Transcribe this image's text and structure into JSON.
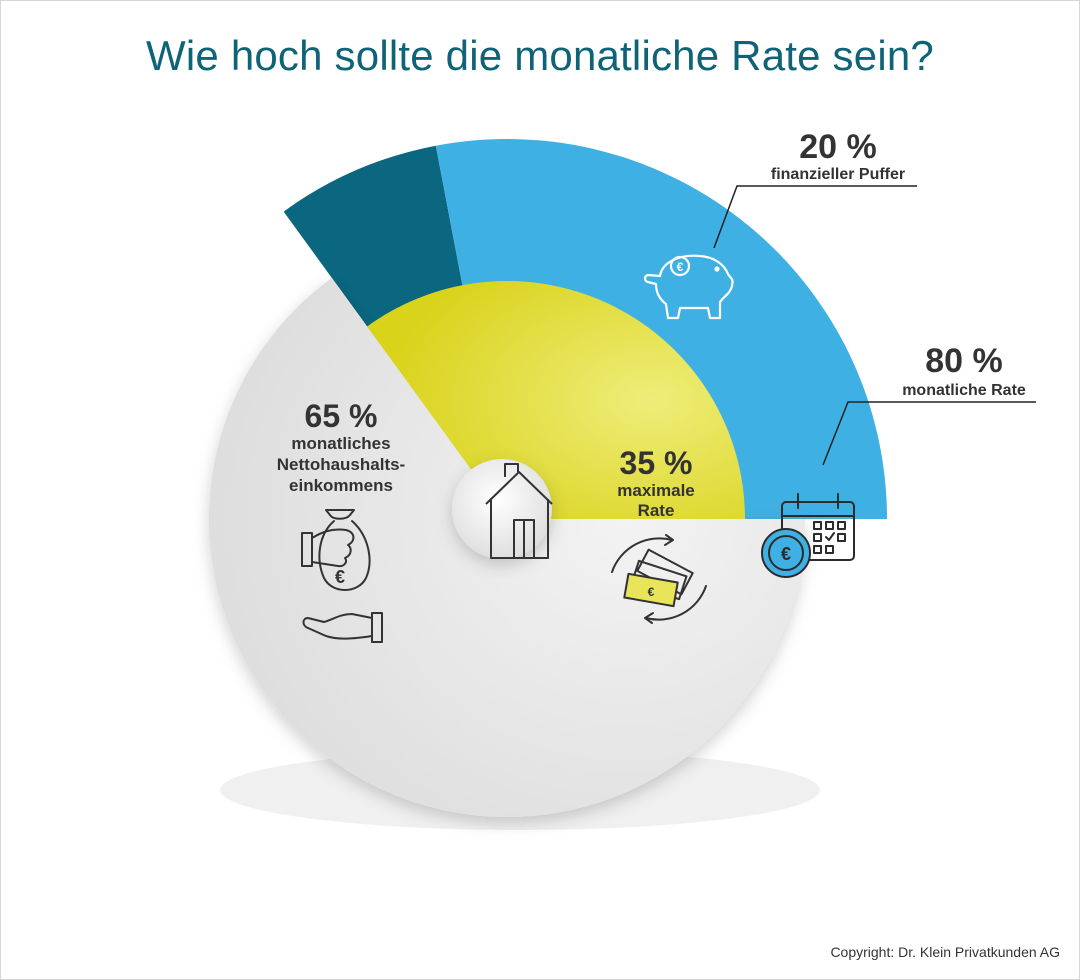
{
  "title": "Wie hoch sollte die monatliche Rate sein?",
  "copyright": "Copyright: Dr. Klein Privatkunden AG",
  "colors": {
    "title": "#0f6377",
    "income": "#e6e6e6",
    "rate": "#e5e24a",
    "monthly": "#3fb0e3",
    "buffer": "#0b6680",
    "text": "#333333"
  },
  "icons": {
    "center": "house-icon",
    "income_1": "hand-with-money-bag-icon",
    "income_2": "open-hand-icon",
    "rate": "banknotes-cycle-icon",
    "monthly": "calendar-euro-coin-icon",
    "buffer": "piggy-bank-icon"
  },
  "chart_data": {
    "type": "pie",
    "inner": {
      "slices": [
        {
          "value": 65,
          "percent_label": "65 %",
          "label_lines": [
            "monatliches",
            "Nettohaushalts-",
            "einkommens"
          ]
        },
        {
          "value": 35,
          "percent_label": "35 %",
          "label_lines": [
            "maximale",
            "Rate"
          ]
        }
      ]
    },
    "outer": {
      "description_of_35": [
        {
          "value": 80,
          "percent_label": "80 %",
          "label": "monatliche Rate"
        },
        {
          "value": 20,
          "percent_label": "20 %",
          "label": "finanzieller Puffer"
        }
      ]
    }
  }
}
